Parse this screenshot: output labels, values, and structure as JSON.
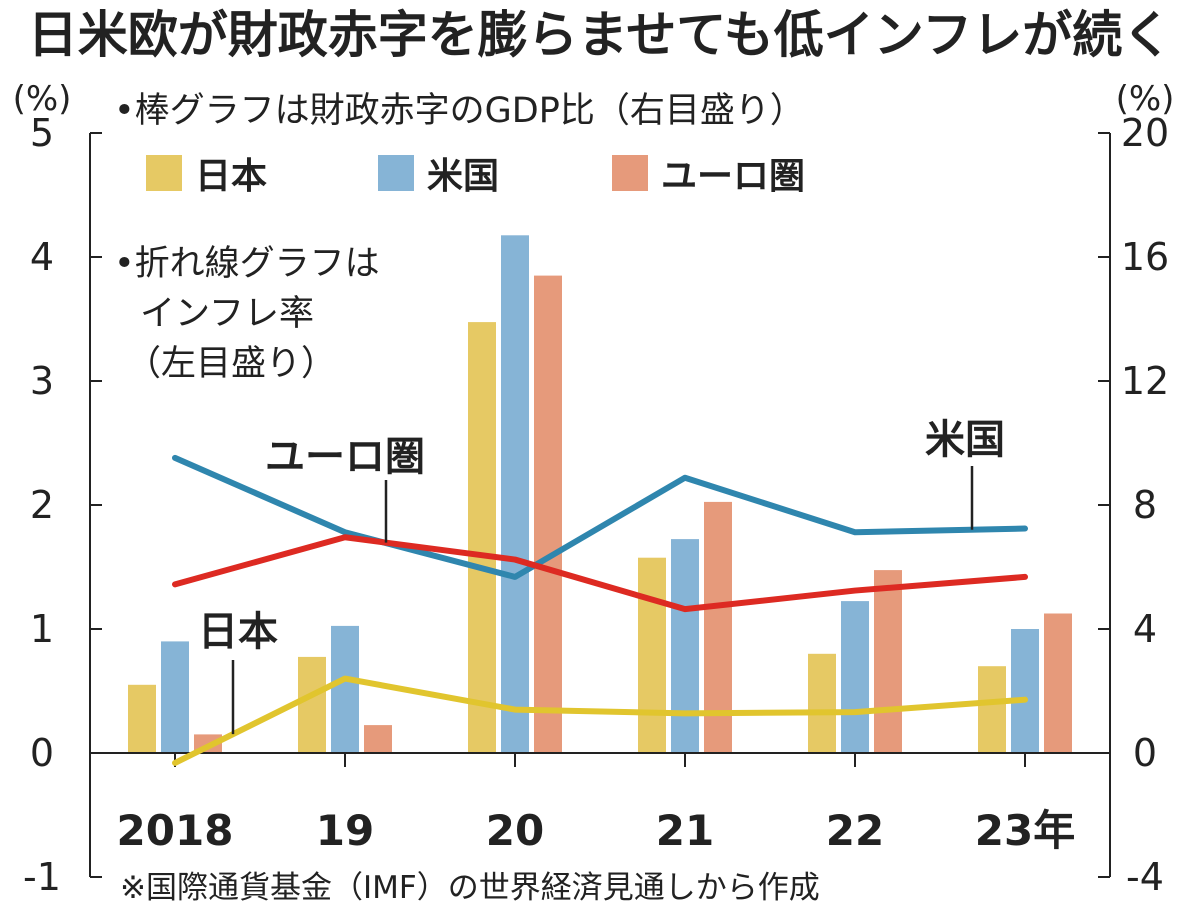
{
  "chart_data": {
    "type": "bar",
    "title": "日米欧が財政赤字を膨らませても低インフレが続く",
    "left_unit": "(%)",
    "right_unit": "(%)",
    "note_bar": "•棒グラフは財政赤字のGDP比（右目盛り）",
    "note_line": [
      "•折れ線グラフは",
      "インフレ率",
      "（左目盛り）"
    ],
    "source": "※国際通貨基金（IMF）の世界経済見通しから作成",
    "categories": [
      "2018",
      "19",
      "20",
      "21",
      "22",
      "23年"
    ],
    "left_axis": {
      "min": -1,
      "max": 5,
      "ticks": [
        "-1",
        "0",
        "1",
        "2",
        "3",
        "4",
        "5"
      ]
    },
    "right_axis": {
      "min": -4,
      "max": 20,
      "ticks": [
        "-4",
        "0",
        "4",
        "8",
        "12",
        "16",
        "20"
      ]
    },
    "bar_series": [
      {
        "name": "日本",
        "color": "#e6c964",
        "values": [
          2.2,
          3.1,
          13.9,
          6.3,
          3.2,
          2.8
        ]
      },
      {
        "name": "米国",
        "color": "#86b4d6",
        "values": [
          3.6,
          4.1,
          16.7,
          6.9,
          4.9,
          4.0
        ]
      },
      {
        "name": "ユーロ圏",
        "color": "#e69a7b",
        "values": [
          0.6,
          0.9,
          15.4,
          8.1,
          5.9,
          4.5
        ]
      }
    ],
    "line_series": [
      {
        "name": "日本",
        "color": "#e1c52e",
        "values": [
          -0.08,
          0.6,
          0.35,
          0.32,
          0.33,
          0.43
        ]
      },
      {
        "name": "米国",
        "color": "#2f86ae",
        "values": [
          2.38,
          1.78,
          1.42,
          2.22,
          1.78,
          1.81
        ]
      },
      {
        "name": "ユーロ圏",
        "color": "#dd2a22",
        "values": [
          1.36,
          1.74,
          1.56,
          1.16,
          1.31,
          1.42
        ]
      }
    ],
    "line_labels": [
      "日本",
      "ユーロ圏",
      "米国"
    ]
  }
}
